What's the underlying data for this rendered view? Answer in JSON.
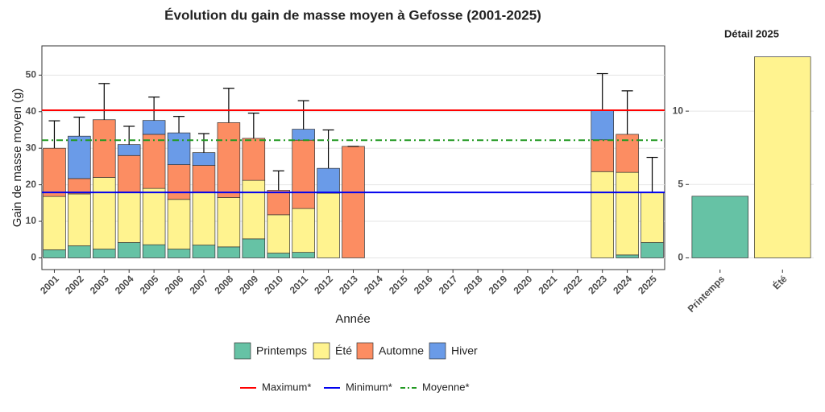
{
  "chart_data": [
    {
      "type": "bar",
      "stacked": true,
      "title": "Évolution du gain de masse moyen à Gefosse (2001-2025)",
      "xlabel": "Année",
      "ylabel": "Gain de masse moyen (g)",
      "categories": [
        "2001",
        "2002",
        "2003",
        "2004",
        "2005",
        "2006",
        "2007",
        "2008",
        "2009",
        "2010",
        "2011",
        "2012",
        "2013",
        "2014",
        "2015",
        "2016",
        "2017",
        "2018",
        "2019",
        "2020",
        "2021",
        "2022",
        "2023",
        "2024",
        "2025"
      ],
      "series": [
        {
          "name": "Printemps",
          "color": "#66c2a5",
          "values": [
            2.2,
            3.3,
            2.4,
            4.2,
            3.6,
            2.4,
            3.5,
            3,
            5.2,
            1.3,
            1.5,
            0,
            0,
            null,
            null,
            null,
            null,
            null,
            null,
            null,
            null,
            null,
            0,
            0.8,
            4.2
          ]
        },
        {
          "name": "Été",
          "color": "#fff38f",
          "values": [
            14.6,
            14.2,
            19.6,
            13.8,
            15.4,
            13.6,
            14.5,
            13.5,
            16,
            10.5,
            12,
            17.7,
            0,
            null,
            null,
            null,
            null,
            null,
            null,
            null,
            null,
            null,
            23.6,
            22.6,
            13.7
          ]
        },
        {
          "name": "Automne",
          "color": "#fc8d62",
          "values": [
            13.2,
            4.2,
            15.8,
            10,
            14.8,
            9.5,
            7.3,
            20.5,
            11.5,
            6.7,
            18.7,
            0,
            30.5,
            null,
            null,
            null,
            null,
            null,
            null,
            null,
            null,
            null,
            8.7,
            10.4,
            0
          ]
        },
        {
          "name": "Hiver",
          "color": "#6a9be8",
          "values": [
            0,
            11.6,
            0,
            3,
            3.8,
            8.7,
            3.5,
            0,
            0,
            0,
            3,
            6.8,
            0,
            null,
            null,
            null,
            null,
            null,
            null,
            null,
            null,
            null,
            8.1,
            0,
            0
          ]
        }
      ],
      "errors": [
        7.5,
        5.2,
        9.9,
        5,
        6.4,
        4.5,
        5.2,
        9.4,
        6.9,
        5.3,
        7.8,
        10.5,
        0,
        null,
        null,
        null,
        null,
        null,
        null,
        null,
        null,
        null,
        10,
        11.9,
        9.6
      ],
      "reference_lines": [
        {
          "name": "Maximum*",
          "value": 40.4,
          "color": "#ff0000",
          "style": "solid"
        },
        {
          "name": "Minimum*",
          "value": 17.9,
          "color": "#0000ee",
          "style": "solid"
        },
        {
          "name": "Moyenne*",
          "value": 32.2,
          "color": "#229922",
          "style": "dashdot"
        }
      ],
      "ylim": [
        -3.2,
        58
      ],
      "yticks": [
        0,
        10,
        20,
        30,
        40,
        50
      ],
      "grid": true
    },
    {
      "type": "bar",
      "title": "Détail 2025",
      "categories": [
        "Printemps",
        "Été"
      ],
      "values": [
        4.2,
        13.7
      ],
      "colors": [
        "#66c2a5",
        "#fff38f"
      ],
      "ylim": [
        -0.8,
        14.45
      ],
      "yticks": [
        0,
        5,
        10
      ],
      "grid": true
    }
  ]
}
